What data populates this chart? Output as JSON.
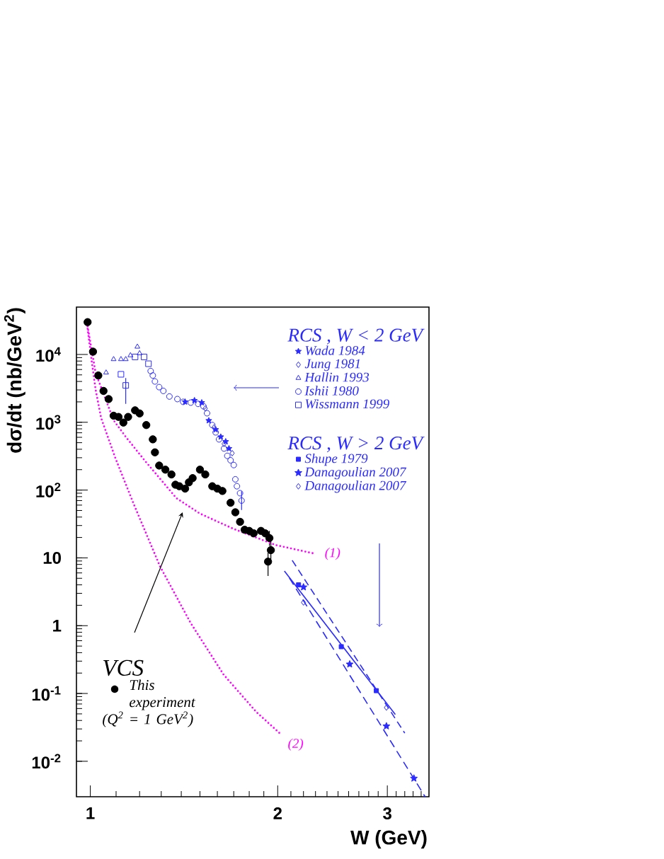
{
  "chart_data": {
    "type": "scatter",
    "xlabel": "W (GeV)",
    "ylabel": "dσ/dt (nb/GeV$^{2}$)",
    "log": "xy",
    "xlim": [
      0.95,
      3.5
    ],
    "ylim": [
      0.003,
      50000
    ],
    "xticks": [
      1,
      {
        "value": 1.1,
        "label": null
      },
      {
        "value": 1.2,
        "label": null
      },
      {
        "value": 1.3,
        "label": null
      },
      {
        "value": 1.4,
        "label": null
      },
      {
        "value": 1.5,
        "label": null
      },
      {
        "value": 1.6,
        "label": null
      },
      {
        "value": 1.7,
        "label": null
      },
      {
        "value": 1.8,
        "label": null
      },
      {
        "value": 1.9,
        "label": null
      },
      2,
      {
        "value": 2.1,
        "label": null
      },
      {
        "value": 2.2,
        "label": null
      },
      {
        "value": 2.3,
        "label": null
      },
      {
        "value": 2.4,
        "label": null
      },
      {
        "value": 2.5,
        "label": null
      },
      {
        "value": 2.6,
        "label": null
      },
      {
        "value": 2.7,
        "label": null
      },
      {
        "value": 2.8,
        "label": null
      },
      {
        "value": 2.9,
        "label": null
      },
      3,
      {
        "value": 3.1,
        "label": null
      },
      {
        "value": 3.2,
        "label": null
      },
      {
        "value": 3.3,
        "label": null
      },
      {
        "value": 3.4,
        "label": null
      }
    ],
    "yticks": [
      {
        "value": 0.01,
        "label": "10$^{-2}$"
      },
      {
        "value": 0.1,
        "label": "10$^{-1}$"
      },
      1,
      10,
      {
        "value": 100,
        "label": "10$^{2}$"
      },
      {
        "value": 1000,
        "label": "10$^{3}$"
      },
      {
        "value": 10000,
        "label": "10$^{4}$"
      }
    ],
    "legend": "top right",
    "annotations": [
      "RCS , W < 2 GeV",
      "RCS , W > 2 GeV",
      "VCS"
    ],
    "series": [
      {
        "name": "Wada 1984",
        "color": "#2b2bff",
        "marker": "star",
        "x": [
          1.42,
          1.47,
          1.51,
          1.55,
          1.59,
          1.62,
          1.65,
          1.67
        ],
        "values": [
          2000,
          2100,
          1950,
          1060,
          780,
          610,
          520,
          410
        ]
      },
      {
        "name": "Jung 1981",
        "color": "#2b2bff",
        "marker": "diamond",
        "x": [
          1.53,
          1.58,
          1.64,
          1.69
        ],
        "values": [
          1600,
          840,
          480,
          350
        ]
      },
      {
        "name": "Hallin 1993",
        "color": "#2b2bff",
        "marker": "triangle",
        "x": [
          1.06,
          1.09,
          1.12,
          1.14,
          1.16,
          1.19,
          1.2
        ],
        "values": [
          5400,
          8500,
          8500,
          8500,
          9700,
          13000,
          10400
        ]
      },
      {
        "name": "Ishii 1980",
        "color": "#2b2bff",
        "marker": "circle",
        "x": [
          1.25,
          1.26,
          1.27,
          1.29,
          1.31,
          1.34,
          1.38,
          1.41,
          1.45,
          1.49,
          1.52,
          1.54,
          1.57,
          1.59,
          1.61,
          1.64,
          1.66,
          1.68,
          1.7,
          1.71,
          1.72,
          1.74,
          1.75
        ],
        "values": [
          5700,
          4900,
          4000,
          3300,
          2900,
          2400,
          2200,
          2000,
          1950,
          1870,
          1720,
          1360,
          910,
          710,
          560,
          410,
          320,
          275,
          234,
          144,
          114,
          90,
          70
        ],
        "errors": [
          null,
          null,
          null,
          null,
          null,
          null,
          null,
          null,
          null,
          null,
          null,
          null,
          null,
          null,
          null,
          null,
          null,
          null,
          null,
          null,
          null,
          null,
          [
            51,
            96
          ]
        ]
      },
      {
        "name": "Wissmann 1999",
        "color": "#2b2bff",
        "marker": "square",
        "x": [
          1.12,
          1.14,
          1.18,
          1.22,
          1.24
        ],
        "values": [
          5100,
          3500,
          9200,
          9200,
          7300
        ],
        "errors": [
          null,
          [
            1870,
            4500
          ],
          null,
          null,
          null
        ]
      },
      {
        "name": "Shupe 1979",
        "color": "#2b2bff",
        "marker": "square",
        "x": [
          2.16,
          2.53,
          2.88
        ],
        "values": [
          4,
          0.49,
          0.11
        ]
      },
      {
        "name": "Danagoulian 2007",
        "color": "#2b2bff",
        "marker": "star",
        "x": [
          2.2,
          2.61,
          2.99,
          3.31
        ],
        "values": [
          3.7,
          0.27,
          0.033,
          0.0056
        ]
      },
      {
        "name": "Danagoulian 2007",
        "color": "#2b2bff",
        "marker": "diamond",
        "x": [
          2.2,
          2.99
        ],
        "values": [
          2.2,
          0.062
        ]
      },
      {
        "name": "This experiment (Q$^{2}$ = 1 GeV$^{2}$)",
        "color": "#000000",
        "marker": "circle",
        "x": [
          0.99,
          1.01,
          1.03,
          1.05,
          1.07,
          1.09,
          1.11,
          1.13,
          1.15,
          1.18,
          1.2,
          1.23,
          1.26,
          1.27,
          1.29,
          1.32,
          1.35,
          1.37,
          1.39,
          1.42,
          1.44,
          1.46,
          1.5,
          1.53,
          1.57,
          1.6,
          1.63,
          1.68,
          1.71,
          1.74,
          1.77,
          1.8,
          1.83,
          1.88,
          1.91,
          1.93,
          1.94,
          1.95
        ],
        "values": [
          30000,
          11000,
          4900,
          2900,
          2200,
          1250,
          1200,
          990,
          1200,
          1500,
          1350,
          910,
          560,
          360,
          230,
          200,
          170,
          120,
          114,
          105,
          130,
          150,
          200,
          170,
          114,
          105,
          97,
          65,
          47,
          34,
          26,
          25,
          23,
          25,
          23,
          8.8,
          19.6,
          13
        ],
        "errors": [
          null,
          null,
          null,
          null,
          null,
          null,
          null,
          null,
          null,
          null,
          null,
          null,
          null,
          null,
          null,
          null,
          null,
          null,
          null,
          null,
          null,
          null,
          null,
          null,
          null,
          null,
          null,
          null,
          null,
          null,
          null,
          null,
          null,
          null,
          null,
          [
            5.4,
            13
          ],
          [
            15,
            25
          ],
          [
            9.5,
            18
          ]
        ]
      },
      {
        "type": "line",
        "color": "#2b2bff",
        "line_style": "solid",
        "x": [
          2.05,
          3.09
        ],
        "values": [
          6.4,
          0.049
        ]
      },
      {
        "type": "line",
        "color": "#2b2bff",
        "line_style": "dashed",
        "x": [
          2.11,
          3.2
        ],
        "values": [
          9.2,
          0.026
        ]
      },
      {
        "type": "line",
        "color": "#2b2bff",
        "line_style": "dashdot",
        "x": [
          2.09,
          3.45
        ],
        "values": [
          5,
          0.003
        ]
      },
      {
        "type": "line",
        "name": "(1)",
        "color": "#ff00ff",
        "line_style": "dotted",
        "x": [
          0.99,
          1.02,
          1.09,
          1.14,
          1.22,
          1.375,
          1.5,
          1.695,
          1.983,
          2.24,
          2.3
        ],
        "values": [
          26000,
          5300,
          1070,
          610,
          280,
          76,
          45,
          27,
          15.5,
          12.1,
          11.5
        ]
      },
      {
        "type": "line",
        "name": "(2)",
        "color": "#ff00ff",
        "line_style": "dotted",
        "x": [
          0.99,
          1.005,
          1.02,
          1.041,
          1.097,
          1.176,
          1.294,
          1.449,
          1.637,
          1.849,
          2.017
        ],
        "values": [
          24000,
          8000,
          3000,
          1150,
          297,
          60,
          7.5,
          1.1,
          0.19,
          0.053,
          0.0257
        ]
      }
    ]
  }
}
